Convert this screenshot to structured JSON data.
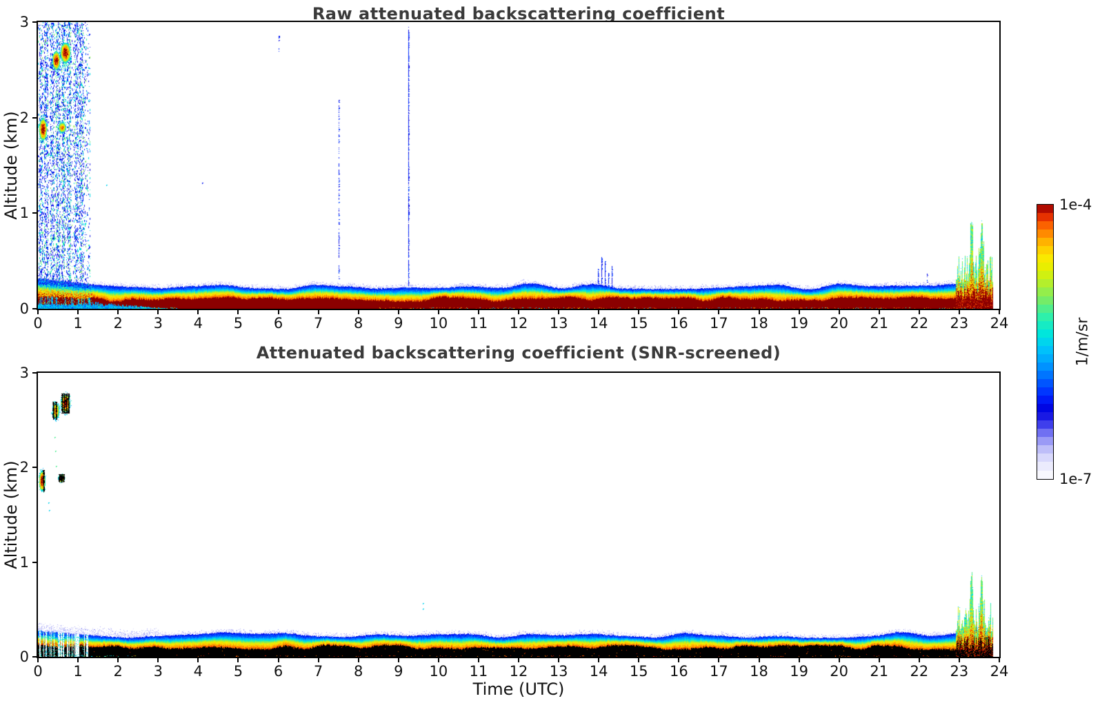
{
  "colorbar": {
    "max_label": "1e-4",
    "min_label": "1e-7",
    "unit": "1/m/sr",
    "steps": 33,
    "palette": [
      [
        0.0,
        "#ffffff"
      ],
      [
        0.05,
        "#e9e9fd"
      ],
      [
        0.09,
        "#cfcffb"
      ],
      [
        0.13,
        "#a4a4f7"
      ],
      [
        0.17,
        "#6b6bf2"
      ],
      [
        0.21,
        "#2b2bea"
      ],
      [
        0.25,
        "#0000dd"
      ],
      [
        0.3,
        "#0022ff"
      ],
      [
        0.36,
        "#0061ff"
      ],
      [
        0.42,
        "#009dff"
      ],
      [
        0.48,
        "#00c8fa"
      ],
      [
        0.53,
        "#00e6dc"
      ],
      [
        0.59,
        "#2df0ac"
      ],
      [
        0.65,
        "#73ec6a"
      ],
      [
        0.71,
        "#b2ef2e"
      ],
      [
        0.76,
        "#e2f000"
      ],
      [
        0.81,
        "#fde800"
      ],
      [
        0.855,
        "#ffbc00"
      ],
      [
        0.9,
        "#ff8300"
      ],
      [
        0.94,
        "#f84c00"
      ],
      [
        0.97,
        "#d31600"
      ],
      [
        1.0,
        "#8b0000"
      ]
    ]
  },
  "style": {
    "title_color": "#3a3a3a",
    "frame_color": "#000000",
    "background": "#ffffff"
  },
  "chart_data": [
    {
      "type": "heatmap",
      "title": "Raw attenuated backscattering coefficient",
      "ylabel": "Altitude (km)",
      "xlabel": "",
      "xlim": [
        0,
        24
      ],
      "ylim": [
        0,
        3
      ],
      "xticks": [
        0,
        1,
        2,
        3,
        4,
        5,
        6,
        7,
        8,
        9,
        10,
        11,
        12,
        13,
        14,
        15,
        16,
        17,
        18,
        19,
        20,
        21,
        22,
        23,
        24
      ],
      "yticks": [
        0,
        1,
        2,
        3
      ],
      "data_end_t": 23.83,
      "surface": {
        "core_style": "darkred",
        "core_top_km": 0.105,
        "band_top_km": 0.235,
        "chaos_until_t": 1.35,
        "wedge_until_t": 3.4,
        "fringe_until_t": 0
      },
      "noise_region": {
        "t": [
          0.0,
          1.3
        ],
        "alt": [
          0.26,
          3.0
        ],
        "count": 5200,
        "streak_ts": [
          0.07,
          0.2,
          0.35,
          0.5,
          0.63,
          0.76,
          0.95,
          1.08
        ]
      },
      "green_streaks": [
        0.45,
        0.63,
        0.8
      ],
      "clouds": [
        {
          "t": 0.12,
          "alt": 1.88,
          "rt": 0.1,
          "ra": 0.12,
          "style": "red"
        },
        {
          "t": 0.45,
          "alt": 2.6,
          "rt": 0.1,
          "ra": 0.1,
          "style": "red"
        },
        {
          "t": 0.68,
          "alt": 2.68,
          "rt": 0.13,
          "ra": 0.11,
          "style": "red"
        },
        {
          "t": 0.6,
          "alt": 1.9,
          "rt": 0.1,
          "ra": 0.055,
          "style": "orange"
        }
      ],
      "vstreaks": [
        {
          "t": 6.0,
          "alt": [
            2.68,
            2.9
          ],
          "density": 0.22
        },
        {
          "t": 7.5,
          "alt": [
            0.3,
            2.2
          ],
          "density": 0.45
        },
        {
          "t": 9.25,
          "alt": [
            0.25,
            2.95
          ],
          "density": 0.9
        },
        {
          "t": 13.98,
          "alt": [
            0.24,
            0.42
          ],
          "density": 1
        },
        {
          "t": 14.07,
          "alt": [
            0.24,
            0.55
          ],
          "density": 1
        },
        {
          "t": 14.16,
          "alt": [
            0.24,
            0.5
          ],
          "density": 1
        },
        {
          "t": 14.24,
          "alt": [
            0.24,
            0.38
          ],
          "density": 1
        },
        {
          "t": 14.33,
          "alt": [
            0.24,
            0.45
          ],
          "density": 1
        },
        {
          "t": 22.2,
          "alt": [
            0.25,
            0.38
          ],
          "density": 0.5
        }
      ],
      "stray_dots": [
        {
          "t": 1.7,
          "alt": 1.3,
          "color": "cyan"
        },
        {
          "t": 4.1,
          "alt": 1.32,
          "color": "blue"
        }
      ],
      "event": {
        "t": [
          22.9,
          23.83
        ],
        "max_alt": 0.9,
        "tall_ts": [
          23.3,
          23.55
        ]
      },
      "ground_speckle": [
        {
          "t": [
            2.2,
            3.5
          ],
          "density": 0.5,
          "kind": "cool"
        },
        {
          "t": [
            8.5,
            23.4
          ],
          "density": 0.28,
          "kind": "mixed"
        }
      ]
    },
    {
      "type": "heatmap",
      "title": "Attenuated backscattering coefficient (SNR-screened)",
      "ylabel": "Altitude (km)",
      "xlabel": "Time (UTC)",
      "xlim": [
        0,
        24
      ],
      "ylim": [
        0,
        3
      ],
      "xticks": [
        0,
        1,
        2,
        3,
        4,
        5,
        6,
        7,
        8,
        9,
        10,
        11,
        12,
        13,
        14,
        15,
        16,
        17,
        18,
        19,
        20,
        21,
        22,
        23,
        24
      ],
      "yticks": [
        0,
        1,
        2,
        3
      ],
      "data_end_t": 23.83,
      "surface": {
        "core_style": "black",
        "core_top_km": 0.105,
        "band_top_km": 0.235,
        "chaos_until_t": 1.25,
        "wedge_until_t": 0,
        "fringe_until_t": 3.0
      },
      "clouds": [
        {
          "t": 0.1,
          "alt": 1.86,
          "rt": 0.08,
          "ra": 0.11,
          "style": "red",
          "bars": [
            0.13
          ]
        },
        {
          "t": 0.44,
          "alt": 2.6,
          "rt": 0.09,
          "ra": 0.09,
          "style": "orange",
          "bars": [
            0.38,
            0.45
          ]
        },
        {
          "t": 0.68,
          "alt": 2.68,
          "rt": 0.12,
          "ra": 0.1,
          "style": "red",
          "bars": [
            0.6,
            0.66,
            0.71,
            0.76
          ]
        },
        {
          "t": 0.58,
          "alt": 1.89,
          "rt": 0.09,
          "ra": 0.04,
          "style": "dark",
          "bars": [
            0.53,
            0.58,
            0.63
          ]
        }
      ],
      "vstreaks": [],
      "stray_dots": [
        {
          "t": 0.42,
          "alt": 2.32,
          "color": "green"
        },
        {
          "t": 0.43,
          "alt": 2.18,
          "color": "green"
        },
        {
          "t": 0.44,
          "alt": 2.02,
          "color": "green"
        },
        {
          "t": 0.25,
          "alt": 1.63,
          "color": "cyan"
        },
        {
          "t": 0.27,
          "alt": 1.55,
          "color": "cyan"
        },
        {
          "t": 9.6,
          "alt": 0.57,
          "color": "cyan"
        },
        {
          "t": 9.6,
          "alt": 0.51,
          "color": "cyan"
        }
      ],
      "event": {
        "t": [
          22.9,
          23.83
        ],
        "max_alt": 0.9,
        "tall_ts": [
          23.3,
          23.55
        ]
      },
      "ground_speckle": [
        {
          "t": [
            0.05,
            2.5
          ],
          "density": 0.2,
          "kind": "cool"
        },
        {
          "t": [
            4.0,
            23.4
          ],
          "density": 0.1,
          "kind": "warm"
        }
      ]
    }
  ]
}
